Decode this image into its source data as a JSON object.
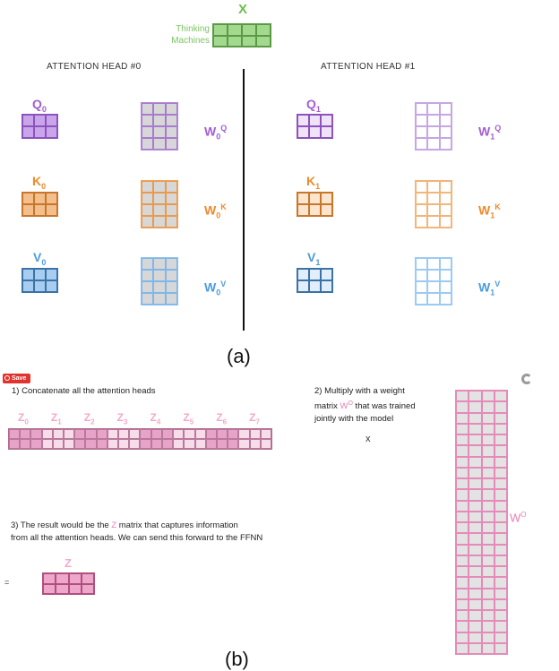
{
  "top": {
    "x_label": "X",
    "x_words": [
      "Thinking",
      "Machines"
    ]
  },
  "heads": [
    {
      "title": "ATTENTION HEAD #0",
      "q": "Q",
      "q_sub": "0",
      "k": "K",
      "k_sub": "0",
      "v": "V",
      "v_sub": "0",
      "wq": "W",
      "wq_sub": "0",
      "wq_sup": "Q",
      "wk": "W",
      "wk_sub": "0",
      "wk_sup": "K",
      "wv": "W",
      "wv_sub": "0",
      "wv_sup": "V"
    },
    {
      "title": "ATTENTION HEAD #1",
      "q": "Q",
      "q_sub": "1",
      "k": "K",
      "k_sub": "1",
      "v": "V",
      "v_sub": "1",
      "wq": "W",
      "wq_sub": "1",
      "wq_sup": "Q",
      "wk": "W",
      "wk_sub": "1",
      "wk_sup": "K",
      "wv": "W",
      "wv_sub": "1",
      "wv_sup": "V"
    }
  ],
  "caption_a": "(a)",
  "caption_b": "(b)",
  "save_button": "Save",
  "step1": "1) Concatenate all the attention heads",
  "z_labels": [
    {
      "base": "Z",
      "sub": "0"
    },
    {
      "base": "Z",
      "sub": "1"
    },
    {
      "base": "Z",
      "sub": "2"
    },
    {
      "base": "Z",
      "sub": "3"
    },
    {
      "base": "Z",
      "sub": "4"
    },
    {
      "base": "Z",
      "sub": "5"
    },
    {
      "base": "Z",
      "sub": "6"
    },
    {
      "base": "Z",
      "sub": "7"
    }
  ],
  "step2": {
    "line1": "2) Multiply with a weight",
    "line2_pre": "matrix ",
    "line2_w": "W",
    "line2_sup": "O",
    "line2_post": " that was trained",
    "line3": "jointly with the model"
  },
  "multiply_sign": "x",
  "wo_label": "W",
  "wo_sup": "O",
  "step3": {
    "line1_pre": "3) The result would be the ",
    "line1_z": "Z",
    "line1_post": " matrix that captures information",
    "line2": "from all the attention heads. We can send this forward to the FFNN"
  },
  "equals_sign": "=",
  "z_result": "Z",
  "colors": {
    "green": "#6abf4b",
    "purple": "#a25ed0",
    "orange": "#ef8a2c",
    "blue": "#4c9be0",
    "pink": "#e97fb6",
    "pink_light": "#f3b8d6"
  }
}
